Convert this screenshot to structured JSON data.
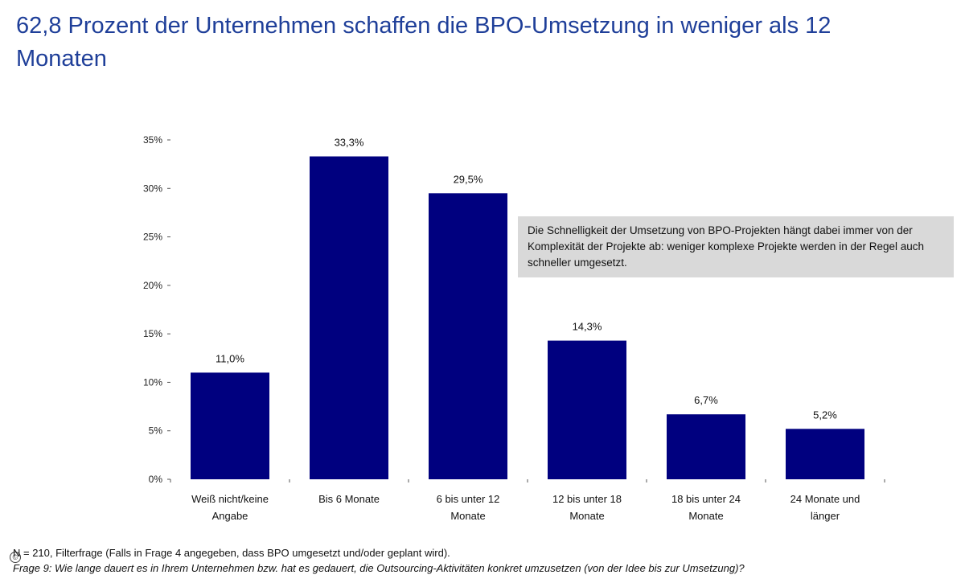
{
  "title": "62,8 Prozent der Unternehmen schaffen die BPO-Umsetzung in weniger als 12 Monaten",
  "annotation": "Die Schnelligkeit der Umsetzung von BPO-Projekten hängt dabei immer von der Komplexität der Projekte ab: weniger komplexe Projekte werden in der Regel auch schneller umgesetzt.",
  "footnote_1": "N = 210, Filterfrage (Falls in Frage 4 angegeben, dass BPO umgesetzt und/oder geplant wird).",
  "footnote_2": "Frage 9: Wie lange dauert es in Ihrem Unternehmen bzw. hat es gedauert, die Outsourcing-Aktivitäten konkret umzusetzen (von der Idee bis zur Umsetzung)?",
  "copyright_symbol": "©",
  "chart_data": {
    "type": "bar",
    "title": "62,8 Prozent der Unternehmen schaffen die BPO-Umsetzung in weniger als 12 Monaten",
    "categories": [
      [
        "Weiß nicht/keine",
        "Angabe"
      ],
      [
        "Bis 6 Monate"
      ],
      [
        "6 bis unter 12",
        "Monate"
      ],
      [
        "12 bis unter 18",
        "Monate"
      ],
      [
        "18 bis unter 24",
        "Monate"
      ],
      [
        "24 Monate und",
        "länger"
      ]
    ],
    "values": [
      11.0,
      33.3,
      29.5,
      14.3,
      6.7,
      5.2
    ],
    "value_labels": [
      "11,0%",
      "33,3%",
      "29,5%",
      "14,3%",
      "6,7%",
      "5,2%"
    ],
    "y_ticks": [
      0,
      5,
      10,
      15,
      20,
      25,
      30,
      35
    ],
    "y_tick_labels": [
      "0%",
      "5%",
      "10%",
      "15%",
      "20%",
      "25%",
      "30%",
      "35%"
    ],
    "ylim": [
      0,
      35
    ],
    "xlabel": "",
    "ylabel": "",
    "grid": false,
    "bar_color": "#00007f"
  }
}
